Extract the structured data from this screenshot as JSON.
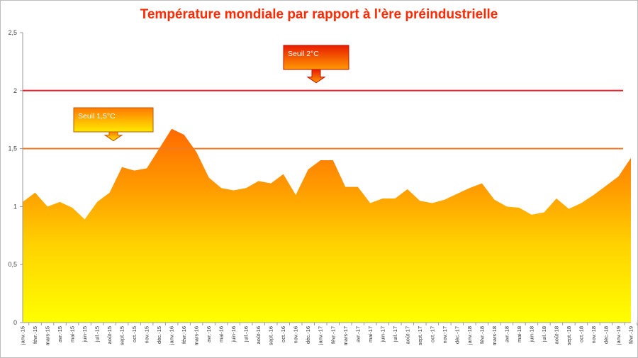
{
  "chart_data": {
    "type": "area",
    "title": "Température mondiale par rapport à l'ère préindustrielle",
    "xlabel": "",
    "ylabel": "",
    "ylim": [
      0,
      2.5
    ],
    "yticks": [
      "0",
      "0,5",
      "1",
      "1,5",
      "2",
      "2,5"
    ],
    "ytick_values": [
      0,
      0.5,
      1,
      1.5,
      2,
      2.5
    ],
    "grid": false,
    "legend": "none",
    "categories": [
      "janv.-15",
      "févr.-15",
      "mars-15",
      "avr.-15",
      "mai-15",
      "juin-15",
      "juil.-15",
      "août-15",
      "sept.-15",
      "oct.-15",
      "nov.-15",
      "déc.-15",
      "janv.-16",
      "févr.-16",
      "mars-16",
      "avr.-16",
      "mai-16",
      "juin-16",
      "juil.-16",
      "août-16",
      "sept.-16",
      "oct.-16",
      "nov.-16",
      "déc.-16",
      "janv.-17",
      "févr.-17",
      "mars-17",
      "avr.-17",
      "mai-17",
      "juin-17",
      "juil.-17",
      "août-17",
      "sept.-17",
      "oct.-17",
      "nov.-17",
      "déc.-17",
      "janv.-18",
      "févr.-18",
      "mars-18",
      "avr.-18",
      "mai-18",
      "juin-18",
      "juil.-18",
      "août-18",
      "sept.-18",
      "oct.-18",
      "nov.-18",
      "déc.-18",
      "janv.-19",
      "févr.-19"
    ],
    "series": [
      {
        "values": [
          1.04,
          1.12,
          1.0,
          1.04,
          0.99,
          0.89,
          1.04,
          1.12,
          1.34,
          1.31,
          1.33,
          1.5,
          1.67,
          1.62,
          1.47,
          1.25,
          1.16,
          1.14,
          1.16,
          1.22,
          1.2,
          1.28,
          1.1,
          1.32,
          1.4,
          1.4,
          1.17,
          1.17,
          1.03,
          1.07,
          1.07,
          1.15,
          1.05,
          1.03,
          1.06,
          1.11,
          1.16,
          1.2,
          1.06,
          1.0,
          0.99,
          0.93,
          0.95,
          1.07,
          0.98,
          1.03,
          1.1,
          1.18,
          1.26,
          1.42
        ]
      }
    ],
    "thresholds": [
      {
        "label": "Seuil 2°C",
        "value": 2.0
      },
      {
        "label": "Seuil 1,5°C",
        "value": 1.5
      }
    ],
    "colors": {
      "area_top": "#ff7a00",
      "area_bottom": "#ffff00",
      "line_2c": "#ee1c25",
      "line_15c": "#f07a22",
      "title": "#ff2a00"
    }
  }
}
